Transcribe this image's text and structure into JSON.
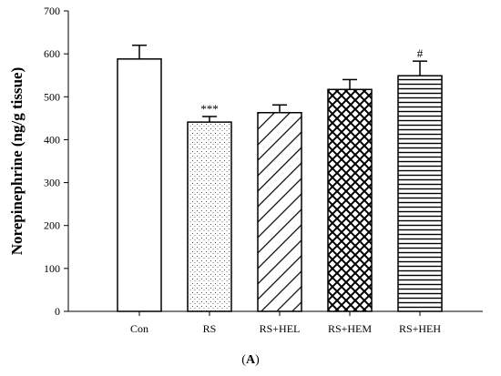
{
  "chart_data": {
    "type": "bar",
    "categories": [
      "Con",
      "RS",
      "RS+HEL",
      "RS+HEM",
      "RS+HEH"
    ],
    "values": [
      588,
      441,
      463,
      517,
      549
    ],
    "errors": [
      32,
      13,
      18,
      23,
      34
    ],
    "annotations": [
      "",
      "***",
      "",
      "",
      "#"
    ],
    "patterns": [
      "none",
      "dots",
      "diagonal",
      "crosshatch",
      "horizontal"
    ],
    "xlabel": "",
    "ylabel": "Norepinephrine (ng/g tissue)",
    "ylim": [
      0,
      700
    ],
    "yticks": [
      0,
      100,
      200,
      300,
      400,
      500,
      600,
      700
    ],
    "grid": false,
    "colors": {
      "bar_fill": "#ffffff",
      "stroke": "#000000"
    }
  },
  "panel_label": {
    "open": "(",
    "letter": "A",
    "close": ")"
  }
}
